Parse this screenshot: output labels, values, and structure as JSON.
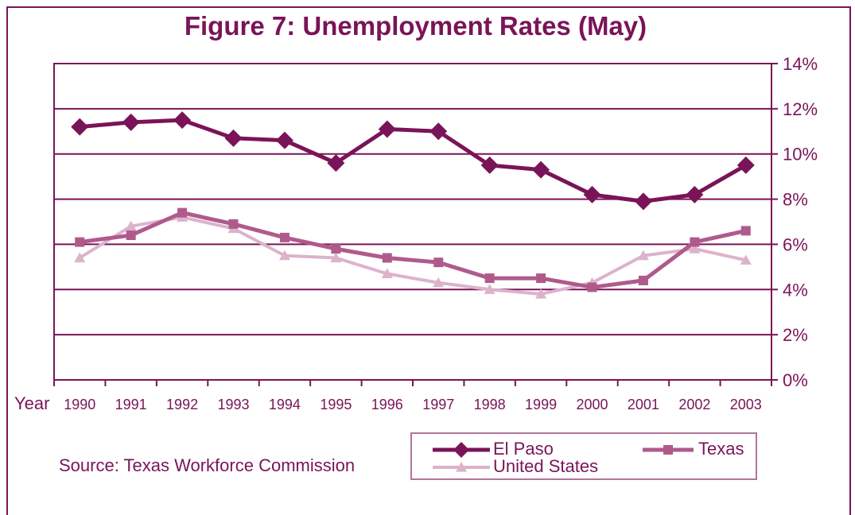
{
  "chart_data": {
    "type": "line",
    "title": "Figure 7: Unemployment Rates (May)",
    "xlabel": "Year",
    "categories": [
      "1990",
      "1991",
      "1992",
      "1993",
      "1994",
      "1995",
      "1996",
      "1997",
      "1998",
      "1999",
      "2000",
      "2001",
      "2002",
      "2003"
    ],
    "y_ticks": [
      "0%",
      "2%",
      "4%",
      "6%",
      "8%",
      "10%",
      "12%",
      "14%"
    ],
    "ylim": [
      0,
      14
    ],
    "y_axis_side": "right",
    "grid": true,
    "legend_position": "bottom-right",
    "series": [
      {
        "name": "El Paso",
        "marker": "diamond",
        "color": "#7a1458",
        "values": [
          11.2,
          11.4,
          11.5,
          10.7,
          10.6,
          9.6,
          11.1,
          11.0,
          9.5,
          9.3,
          8.2,
          7.9,
          8.2,
          9.5
        ]
      },
      {
        "name": "Texas",
        "marker": "square",
        "color": "#b05a8c",
        "values": [
          6.1,
          6.4,
          7.4,
          6.9,
          6.3,
          5.8,
          5.4,
          5.2,
          4.5,
          4.5,
          4.1,
          4.4,
          6.1,
          6.6
        ]
      },
      {
        "name": "United States",
        "marker": "triangle",
        "color": "#dcb3cc",
        "values": [
          5.4,
          6.8,
          7.2,
          6.7,
          5.5,
          5.4,
          4.7,
          4.3,
          4.0,
          3.8,
          4.3,
          5.5,
          5.8,
          5.3
        ]
      }
    ]
  },
  "source_text": "Source: Texas Workforce Commission"
}
